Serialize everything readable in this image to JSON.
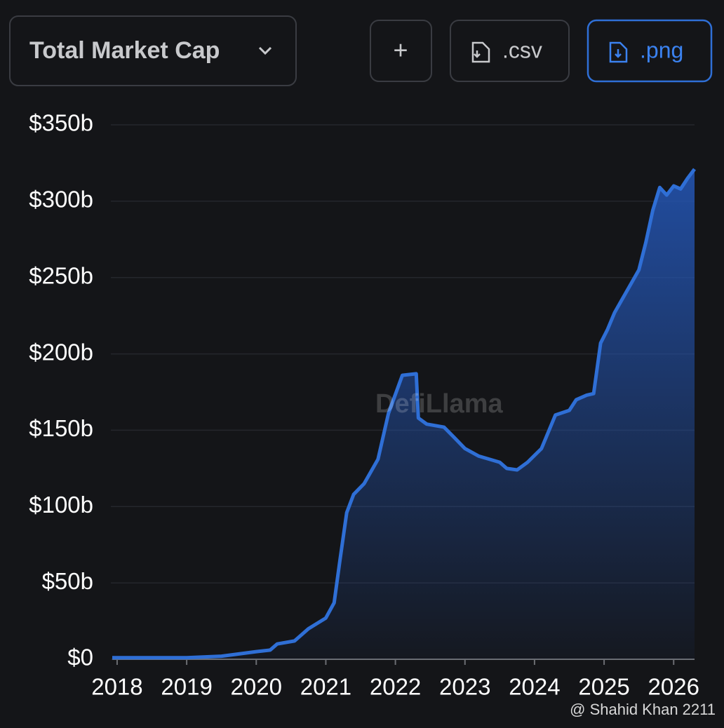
{
  "controls": {
    "selector": "Total Market Cap",
    "buttons": [
      "+",
      ".csv",
      ".png"
    ]
  },
  "watermark": "DefiLlama",
  "credit": "@ Shahid Khan 2211",
  "chart_data": {
    "type": "area",
    "color": "#2f6fd6",
    "x": [
      2017.93,
      2019.0,
      2019.5,
      2020.0,
      2020.2,
      2020.3,
      2020.55,
      2020.75,
      2021.0,
      2021.12,
      2021.2,
      2021.3,
      2021.4,
      2021.55,
      2021.75,
      2021.9,
      2022.1,
      2022.3,
      2022.33,
      2022.45,
      2022.7,
      2022.85,
      2023.0,
      2023.2,
      2023.5,
      2023.6,
      2023.75,
      2023.9,
      2024.1,
      2024.3,
      2024.5,
      2024.6,
      2024.75,
      2024.85,
      2024.95,
      2025.05,
      2025.15,
      2025.25,
      2025.35,
      2025.5,
      2025.6,
      2025.7,
      2025.8,
      2025.9,
      2026.0,
      2026.1,
      2026.2,
      2026.3
    ],
    "values": [
      1,
      1,
      2,
      5,
      6,
      10,
      12,
      20,
      27,
      37,
      64,
      96,
      108,
      115,
      131,
      161,
      186,
      187,
      158,
      154,
      152,
      145,
      138,
      133,
      129,
      125,
      124,
      129,
      138,
      160,
      163,
      170,
      173,
      174,
      207,
      216,
      227,
      235,
      243,
      255,
      273,
      294,
      309,
      304,
      310,
      308,
      315,
      321
    ],
    "xlim": [
      2017.93,
      2026.3
    ],
    "xticks": [
      2018,
      2019,
      2020,
      2021,
      2022,
      2023,
      2024,
      2025,
      2026
    ],
    "ylim": [
      0,
      350
    ],
    "yticks": [
      {
        "value": 0,
        "label": "$0"
      },
      {
        "value": 50,
        "label": "$50b"
      },
      {
        "value": 100,
        "label": "$100b"
      },
      {
        "value": 150,
        "label": "$150b"
      },
      {
        "value": 200,
        "label": "$200b"
      },
      {
        "value": 250,
        "label": "$250b"
      },
      {
        "value": 300,
        "label": "$300b"
      },
      {
        "value": 350,
        "label": "$350b"
      }
    ],
    "grid": true
  }
}
